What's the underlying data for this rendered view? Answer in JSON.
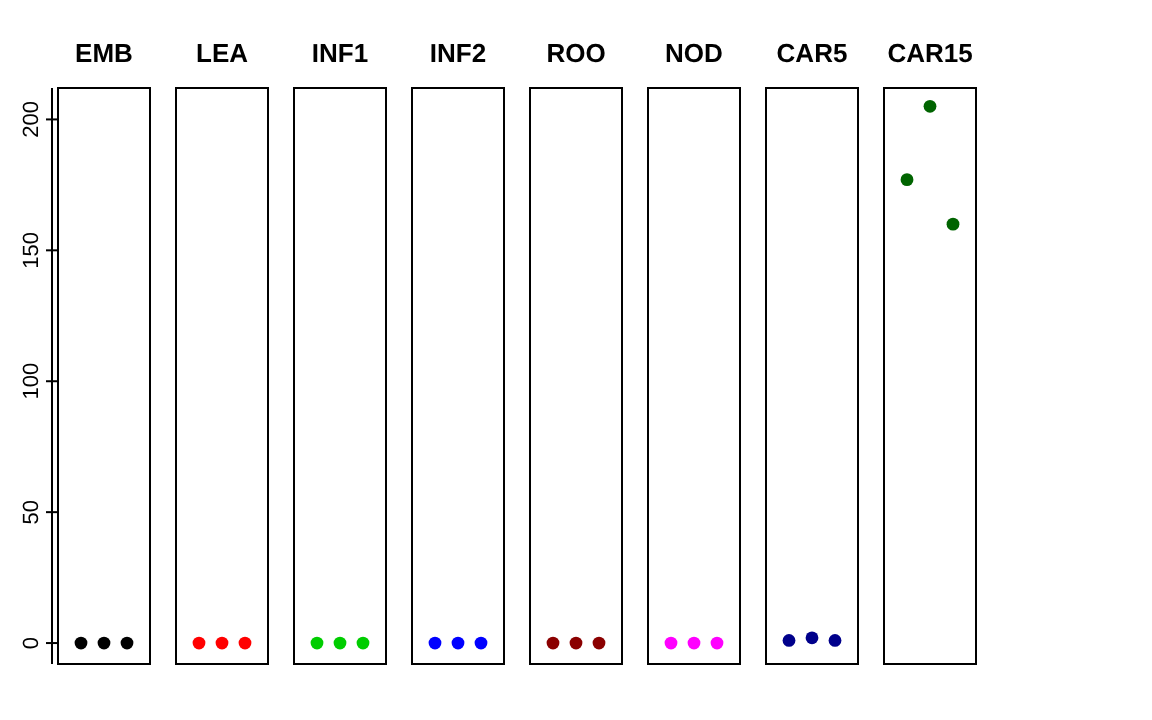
{
  "chart_data": {
    "type": "scatter",
    "categories": [
      "EMB",
      "LEA",
      "INF1",
      "INF2",
      "ROO",
      "NOD",
      "CAR5",
      "CAR15"
    ],
    "ylim": [
      -8,
      212
    ],
    "yticks": [
      0,
      50,
      100,
      150,
      200
    ],
    "marker": "circle",
    "series": [
      {
        "colors": [
          "#000000",
          "#ff0000",
          "#00cd00",
          "#0000ff",
          "#8b0000",
          "#ff00ff",
          "#00008b",
          "#006400"
        ],
        "values": [
          0,
          0,
          0,
          0,
          0,
          0,
          1,
          177
        ]
      },
      {
        "colors": [
          "#000000",
          "#ff0000",
          "#00cd00",
          "#0000ff",
          "#8b0000",
          "#ff00ff",
          "#00008b",
          "#006400"
        ],
        "values": [
          0,
          0,
          0,
          0,
          0,
          0,
          2,
          205
        ]
      },
      {
        "colors": [
          "#000000",
          "#ff0000",
          "#00cd00",
          "#0000ff",
          "#8b0000",
          "#ff00ff",
          "#00008b",
          "#006400"
        ],
        "values": [
          0,
          0,
          0,
          0,
          0,
          0,
          1,
          160
        ]
      }
    ]
  }
}
